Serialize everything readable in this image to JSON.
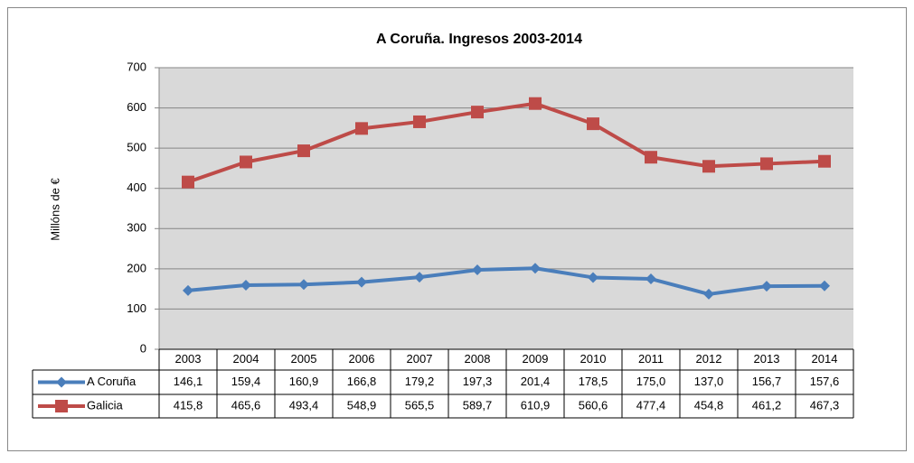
{
  "chart_data": {
    "type": "line",
    "title": "A Coruña. Ingresos 2003-2014",
    "y_label": "Millóns de €",
    "categories": [
      "2003",
      "2004",
      "2005",
      "2006",
      "2007",
      "2008",
      "2009",
      "2010",
      "2011",
      "2012",
      "2013",
      "2014"
    ],
    "series": [
      {
        "name": "A Coruña",
        "color": "#4a7ebb",
        "marker": "diamond",
        "values": [
          146.1,
          159.4,
          160.9,
          166.8,
          179.2,
          197.3,
          201.4,
          178.5,
          175.0,
          137.0,
          156.7,
          157.6
        ],
        "value_labels": [
          "146,1",
          "159,4",
          "160,9",
          "166,8",
          "179,2",
          "197,3",
          "201,4",
          "178,5",
          "175,0",
          "137,0",
          "156,7",
          "157,6"
        ]
      },
      {
        "name": "Galicia",
        "color": "#be4b48",
        "marker": "square",
        "values": [
          415.8,
          465.6,
          493.4,
          548.9,
          565.5,
          589.7,
          610.9,
          560.6,
          477.4,
          454.8,
          461.2,
          467.3
        ],
        "value_labels": [
          "415,8",
          "465,6",
          "493,4",
          "548,9",
          "565,5",
          "589,7",
          "610,9",
          "560,6",
          "477,4",
          "454,8",
          "461,2",
          "467,3"
        ]
      }
    ],
    "ylim": [
      0,
      700
    ],
    "yticks": [
      0,
      100,
      200,
      300,
      400,
      500,
      600,
      700
    ],
    "grid": true,
    "data_table": true
  }
}
